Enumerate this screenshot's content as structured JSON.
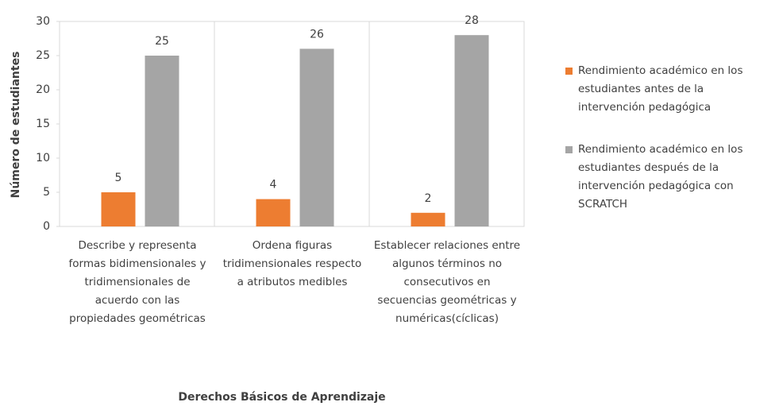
{
  "chart_data": {
    "type": "bar",
    "x_label": "Derechos Básicos de Aprendizaje",
    "y_label": "Número de estudiantes",
    "categories": [
      "Describe y representa formas bidimensionales y tridimensionales de acuerdo con las propiedades geométricas",
      "Ordena figuras tridimensionales respecto a atributos medibles",
      "Establecer relaciones entre algunos términos no consecutivos en secuencias geométricas y numéricas(cíclicas)"
    ],
    "series": [
      {
        "name": "Rendimiento académico en los estudiantes antes de la intervención pedagógica",
        "color": "#ed7d31",
        "values": [
          5,
          4,
          2
        ]
      },
      {
        "name": "Rendimiento académico en los estudiantes después de la intervención pedagógica con SCRATCH",
        "color": "#a5a5a5",
        "values": [
          25,
          26,
          28
        ]
      }
    ],
    "ylim": [
      0,
      30
    ],
    "yticks": [
      0,
      5,
      10,
      15,
      20,
      25,
      30
    ],
    "grid": false,
    "legend": "right"
  }
}
